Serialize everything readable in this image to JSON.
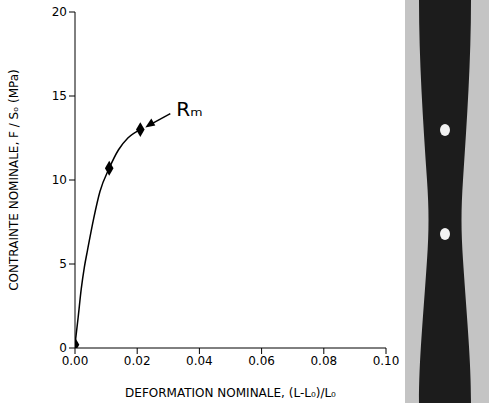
{
  "chart_data": {
    "type": "line",
    "x_label": "DEFORMATION NOMINALE,  (L-L₀)/L₀",
    "y_label": "CONTRAINTE NOMINALE,  F / Sₒ (MPa)",
    "xlim": [
      0,
      0.1
    ],
    "xticks": [
      {
        "value": 0,
        "label": "0.00"
      },
      {
        "value": 0.02,
        "label": "0.02"
      },
      {
        "value": 0.04,
        "label": "0.04"
      },
      {
        "value": 0.06,
        "label": "0.06"
      },
      {
        "value": 0.08,
        "label": "0.08"
      },
      {
        "value": 0.1,
        "label": "0.10"
      }
    ],
    "ylim": [
      0,
      20
    ],
    "yticks": [
      0,
      5,
      10,
      15,
      20
    ],
    "grid": false,
    "series": [
      {
        "type": "line",
        "color": "#000000",
        "x": [
          0,
          0.001,
          0.002,
          0.003,
          0.004,
          0.006,
          0.008,
          0.011,
          0.014,
          0.017,
          0.021
        ],
        "values": [
          0.2,
          1.8,
          3.5,
          4.8,
          5.8,
          7.7,
          9.3,
          10.7,
          11.8,
          12.5,
          13.0
        ]
      },
      {
        "type": "scatter",
        "marker": "diamond",
        "color": "#000000",
        "x": [
          0,
          0.011,
          0.021
        ],
        "values": [
          0.2,
          10.7,
          13.0
        ]
      }
    ],
    "annotations": [
      {
        "text": "Rₘ",
        "x": 0.021,
        "y": 13.0
      }
    ]
  }
}
